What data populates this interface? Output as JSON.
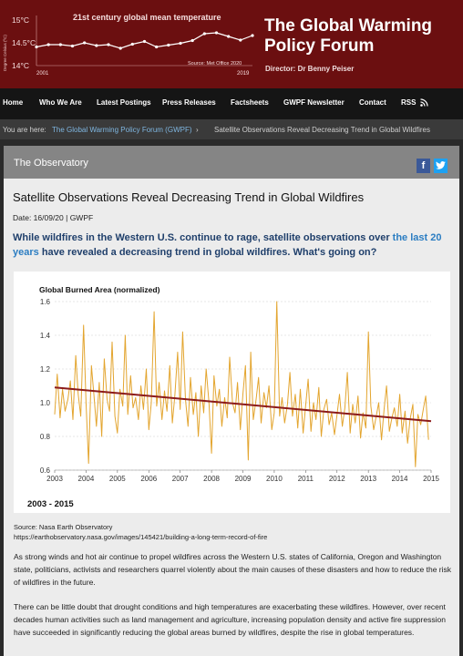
{
  "header": {
    "mini_chart": {
      "title": "21st century global mean temperature",
      "ylabel": "Degree Celsius (ºC)",
      "yticks": [
        "15°C",
        "14.5°C",
        "14°C"
      ],
      "xticks": [
        "2001",
        "2019"
      ],
      "source": "Source: Met Office 2020",
      "line_color": "#ffffff",
      "values": [
        14.41,
        14.46,
        14.46,
        14.43,
        14.5,
        14.44,
        14.46,
        14.38,
        14.47,
        14.53,
        14.41,
        14.45,
        14.49,
        14.55,
        14.7,
        14.72,
        14.64,
        14.56,
        14.66
      ]
    },
    "site_title": "The Global Warming Policy Forum",
    "director": "Director: Dr Benny Peiser",
    "background": "#6b0f10"
  },
  "nav": {
    "items": [
      "Home",
      "Who We Are",
      "Latest Postings",
      "Press Releases",
      "Factsheets",
      "GWPF Newsletter",
      "Contact",
      "RSS"
    ]
  },
  "breadcrumb": {
    "prefix": "You are here:",
    "link": "The Global Warming Policy Forum (GWPF)",
    "separator": "›",
    "current": "Satellite Observations Reveal Decreasing Trend in Global Wildfires"
  },
  "section": {
    "title": "The Observatory",
    "social": [
      {
        "icon": "facebook-icon",
        "glyph": "f",
        "color": "#3b5998"
      },
      {
        "icon": "twitter-icon",
        "glyph": "🐦",
        "color": "#1da1f2"
      }
    ]
  },
  "article": {
    "title": "Satellite Observations Reveal Decreasing Trend in Global Wildfires",
    "meta": "Date: 16/09/20 | GWPF",
    "lead_parts": {
      "a": "While wildfires in the Western U.S. continue to rage, satellite observations over ",
      "b": "the last 20 years",
      "c": " have revealed a decreasing trend in global wildfires. What's going on?"
    },
    "period_label": "2003 - 2015",
    "source_line1": "Source: Nasa Earth Observatory",
    "source_line2": "https://earthobservatory.nasa.gov/images/145421/building-a-long-term-record-of-fire",
    "paragraph1": "As strong winds and hot air continue to propel wildfires across the Western U.S. states of California, Oregon and Washington state, politicians, activists and researchers quarrel violently about the main causes of these disasters and how to reduce the risk of wildfires in the future.",
    "paragraph2": "There can be little doubt that drought conditions and high temperatures are exacerbating these wildfires. However, over recent decades human activities such as land management and agriculture, increasing population density and active fire suppression have succeeded in significantly reducing the global areas burned by wildfires, despite the rise in global temperatures."
  },
  "chart_data": {
    "type": "line",
    "title": "Global Burned Area (normalized)",
    "xlabel": "",
    "ylabel": "",
    "xlim": [
      2003,
      2015
    ],
    "ylim": [
      0.6,
      1.6
    ],
    "xticks": [
      "2003",
      "2004",
      "2005",
      "2006",
      "2007",
      "2008",
      "2009",
      "2010",
      "2011",
      "2012",
      "2013",
      "2014",
      "2015"
    ],
    "yticks": [
      "0.6",
      "0.8",
      "1.0",
      "1.2",
      "1.4",
      "1.6"
    ],
    "grid": true,
    "series": [
      {
        "kind": "monthly",
        "color": "#e3a52f",
        "x": [
          2003.0,
          2003.08,
          2003.17,
          2003.25,
          2003.33,
          2003.42,
          2003.5,
          2003.58,
          2003.67,
          2003.75,
          2003.83,
          2003.92,
          2004.0,
          2004.08,
          2004.17,
          2004.25,
          2004.33,
          2004.42,
          2004.5,
          2004.58,
          2004.67,
          2004.75,
          2004.83,
          2004.92,
          2005.0,
          2005.08,
          2005.17,
          2005.25,
          2005.33,
          2005.42,
          2005.5,
          2005.58,
          2005.67,
          2005.75,
          2005.83,
          2005.92,
          2006.0,
          2006.08,
          2006.17,
          2006.25,
          2006.33,
          2006.42,
          2006.5,
          2006.58,
          2006.67,
          2006.75,
          2006.83,
          2006.92,
          2007.0,
          2007.08,
          2007.17,
          2007.25,
          2007.33,
          2007.42,
          2007.5,
          2007.58,
          2007.67,
          2007.75,
          2007.83,
          2007.92,
          2008.0,
          2008.08,
          2008.17,
          2008.25,
          2008.33,
          2008.42,
          2008.5,
          2008.58,
          2008.67,
          2008.75,
          2008.83,
          2008.92,
          2009.0,
          2009.08,
          2009.17,
          2009.25,
          2009.33,
          2009.42,
          2009.5,
          2009.58,
          2009.67,
          2009.75,
          2009.83,
          2009.92,
          2010.0,
          2010.08,
          2010.17,
          2010.25,
          2010.33,
          2010.42,
          2010.5,
          2010.58,
          2010.67,
          2010.75,
          2010.83,
          2010.92,
          2011.0,
          2011.08,
          2011.17,
          2011.25,
          2011.33,
          2011.42,
          2011.5,
          2011.58,
          2011.67,
          2011.75,
          2011.83,
          2011.92,
          2012.0,
          2012.08,
          2012.17,
          2012.25,
          2012.33,
          2012.42,
          2012.5,
          2012.58,
          2012.67,
          2012.75,
          2012.83,
          2012.92,
          2013.0,
          2013.08,
          2013.17,
          2013.25,
          2013.33,
          2013.42,
          2013.5,
          2013.58,
          2013.67,
          2013.75,
          2013.83,
          2013.92,
          2014.0,
          2014.08,
          2014.17,
          2014.25,
          2014.33,
          2014.42,
          2014.5,
          2014.58,
          2014.67,
          2014.75,
          2014.83,
          2014.92
        ],
        "values": [
          0.93,
          1.17,
          0.91,
          1.08,
          0.95,
          1.02,
          1.13,
          0.9,
          1.28,
          1.05,
          0.92,
          1.46,
          1.0,
          0.64,
          1.22,
          1.05,
          0.86,
          1.12,
          0.8,
          1.26,
          1.02,
          0.95,
          1.36,
          0.92,
          0.82,
          1.08,
          0.98,
          1.4,
          0.93,
          1.16,
          0.97,
          1.03,
          0.9,
          1.1,
          0.96,
          1.2,
          0.84,
          1.0,
          1.54,
          0.98,
          1.12,
          0.9,
          1.07,
          0.95,
          1.22,
          0.88,
          1.04,
          1.3,
          0.96,
          1.42,
          1.02,
          0.86,
          1.15,
          0.93,
          1.06,
          0.8,
          1.1,
          0.94,
          1.2,
          1.0,
          0.7,
          1.16,
          0.98,
          1.08,
          0.86,
          1.03,
          0.91,
          1.27,
          1.0,
          0.94,
          1.12,
          0.84,
          1.05,
          1.22,
          0.66,
          1.3,
          0.9,
          1.02,
          1.15,
          0.88,
          1.06,
          0.97,
          1.1,
          0.84,
          0.94,
          1.6,
          0.92,
          1.03,
          0.88,
          0.99,
          1.18,
          0.92,
          1.05,
          0.85,
          1.08,
          0.82,
          0.98,
          1.14,
          0.83,
          1.0,
          0.9,
          1.09,
          0.8,
          0.96,
          1.02,
          0.87,
          0.94,
          0.81,
          0.93,
          1.05,
          0.86,
          0.97,
          1.18,
          0.82,
          0.99,
          0.88,
          1.04,
          0.79,
          0.94,
          0.85,
          1.42,
          0.98,
          0.84,
          0.92,
          1.0,
          0.78,
          0.96,
          1.1,
          0.83,
          0.91,
          0.97,
          0.86,
          1.05,
          0.82,
          0.95,
          0.76,
          0.9,
          0.99,
          0.62,
          0.93,
          0.87,
          0.96,
          1.04,
          0.78
        ]
      },
      {
        "kind": "trend",
        "color": "#8b1a1a",
        "x": [
          2003,
          2015
        ],
        "values": [
          1.09,
          0.89
        ]
      }
    ]
  }
}
